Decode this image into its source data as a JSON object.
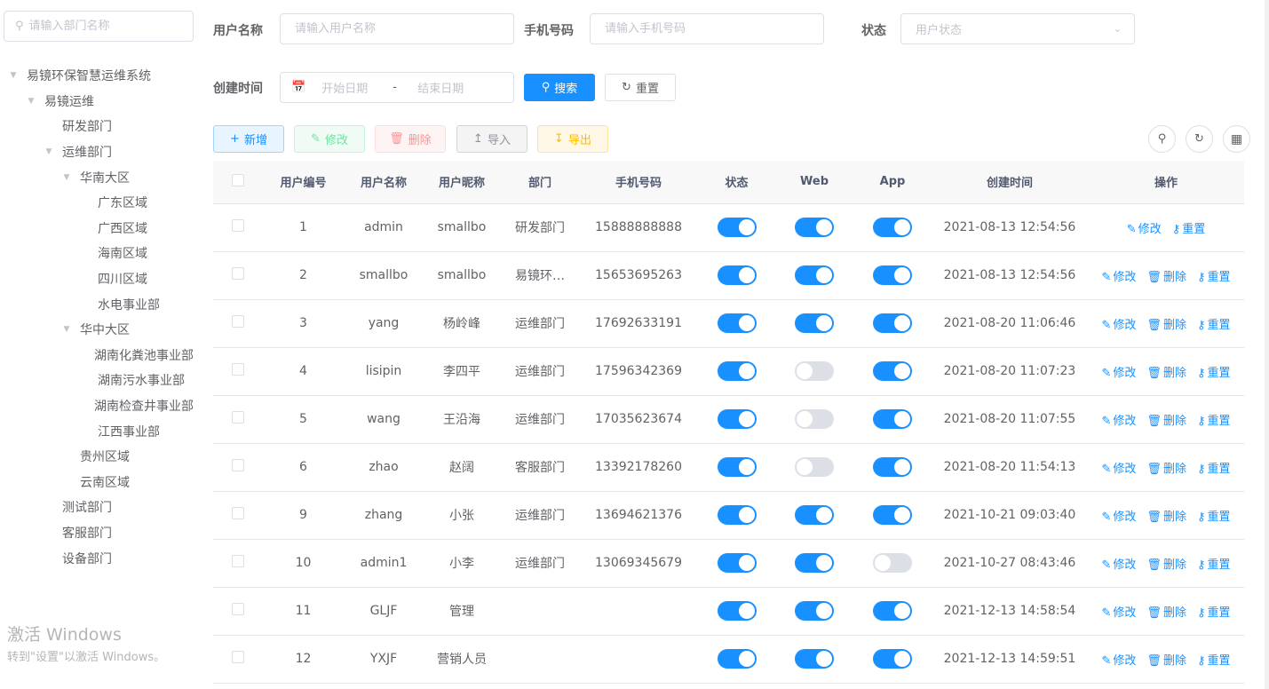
{
  "sidebar": {
    "search_placeholder": "请输入部门名称",
    "tree": [
      {
        "label": "易镜环保智慧运维系统",
        "level": 0,
        "expanded": true
      },
      {
        "label": "易镜运维",
        "level": 1,
        "expanded": true
      },
      {
        "label": "研发部门",
        "level": 2
      },
      {
        "label": "运维部门",
        "level": 2,
        "expanded": true
      },
      {
        "label": "华南大区",
        "level": 3,
        "expanded": true
      },
      {
        "label": "广东区域",
        "level": 4
      },
      {
        "label": "广西区域",
        "level": 4
      },
      {
        "label": "海南区域",
        "level": 4
      },
      {
        "label": "四川区域",
        "level": 4
      },
      {
        "label": "水电事业部",
        "level": 4
      },
      {
        "label": "华中大区",
        "level": 3,
        "expanded": true
      },
      {
        "label": "湖南化粪池事业部",
        "level": 4
      },
      {
        "label": "湖南污水事业部",
        "level": 4
      },
      {
        "label": "湖南检查井事业部",
        "level": 4
      },
      {
        "label": "江西事业部",
        "level": 4
      },
      {
        "label": "贵州区域",
        "level": 3
      },
      {
        "label": "云南区域",
        "level": 3
      },
      {
        "label": "测试部门",
        "level": 2
      },
      {
        "label": "客服部门",
        "level": 2
      },
      {
        "label": "设备部门",
        "level": 2
      }
    ]
  },
  "filters": {
    "username_label": "用户名称",
    "username_placeholder": "请输入用户名称",
    "phone_label": "手机号码",
    "phone_placeholder": "请输入手机号码",
    "status_label": "状态",
    "status_placeholder": "用户状态",
    "created_label": "创建时间",
    "start_placeholder": "开始日期",
    "date_sep": "-",
    "end_placeholder": "结束日期",
    "search": "搜索",
    "reset": "重置"
  },
  "toolbar": {
    "add": "新增",
    "edit": "修改",
    "delete": "删除",
    "import": "导入",
    "export": "导出"
  },
  "table": {
    "headers": [
      "用户编号",
      "用户名称",
      "用户昵称",
      "部门",
      "手机号码",
      "状态",
      "Web",
      "App",
      "创建时间",
      "操作"
    ],
    "rows": [
      {
        "id": "1",
        "name": "admin",
        "nick": "smallbo",
        "dept": "研发部门",
        "phone": "15888888888",
        "status": true,
        "web": true,
        "app": true,
        "created": "2021-08-13 12:54:56",
        "deletable": false
      },
      {
        "id": "2",
        "name": "smallbo",
        "nick": "smallbo",
        "dept": "易镜环…",
        "phone": "15653695263",
        "status": true,
        "web": true,
        "app": true,
        "created": "2021-08-13 12:54:56",
        "deletable": true
      },
      {
        "id": "3",
        "name": "yang",
        "nick": "杨岭峰",
        "dept": "运维部门",
        "phone": "17692633191",
        "status": true,
        "web": true,
        "app": true,
        "created": "2021-08-20 11:06:46",
        "deletable": true
      },
      {
        "id": "4",
        "name": "lisipin",
        "nick": "李四平",
        "dept": "运维部门",
        "phone": "17596342369",
        "status": true,
        "web": false,
        "app": true,
        "created": "2021-08-20 11:07:23",
        "deletable": true
      },
      {
        "id": "5",
        "name": "wang",
        "nick": "王沿海",
        "dept": "运维部门",
        "phone": "17035623674",
        "status": true,
        "web": false,
        "app": true,
        "created": "2021-08-20 11:07:55",
        "deletable": true
      },
      {
        "id": "6",
        "name": "zhao",
        "nick": "赵阔",
        "dept": "客服部门",
        "phone": "13392178260",
        "status": true,
        "web": false,
        "app": true,
        "created": "2021-08-20 11:54:13",
        "deletable": true
      },
      {
        "id": "9",
        "name": "zhang",
        "nick": "小张",
        "dept": "运维部门",
        "phone": "13694621376",
        "status": true,
        "web": true,
        "app": true,
        "created": "2021-10-21 09:03:40",
        "deletable": true
      },
      {
        "id": "10",
        "name": "admin1",
        "nick": "小李",
        "dept": "运维部门",
        "phone": "13069345679",
        "status": true,
        "web": true,
        "app": false,
        "created": "2021-10-27 08:43:46",
        "deletable": true
      },
      {
        "id": "11",
        "name": "GLJF",
        "nick": "管理",
        "dept": "",
        "phone": "",
        "status": true,
        "web": true,
        "app": true,
        "created": "2021-12-13 14:58:54",
        "deletable": true
      },
      {
        "id": "12",
        "name": "YXJF",
        "nick": "营销人员",
        "dept": "",
        "phone": "",
        "status": true,
        "web": true,
        "app": true,
        "created": "2021-12-13 14:59:51",
        "deletable": true
      }
    ],
    "op_edit": "修改",
    "op_delete": "删除",
    "op_reset": "重置"
  },
  "watermark": {
    "line1": "激活 Windows",
    "line2": "转到\"设置\"以激活 Windows。"
  },
  "colors": {
    "primary": "#1890ff",
    "switch_off": "#dcdfe6"
  }
}
